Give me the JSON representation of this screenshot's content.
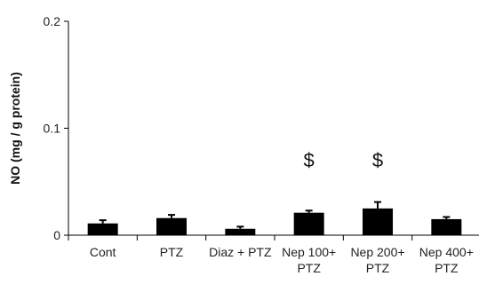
{
  "chart_data": {
    "type": "bar",
    "ylabel": "NO (mg / g protein)",
    "ylim": [
      0,
      0.2
    ],
    "yticks": [
      {
        "value": 0,
        "label": "0"
      },
      {
        "value": 0.1,
        "label": "0.1"
      },
      {
        "value": 0.2,
        "label": "0.2"
      }
    ],
    "categories": [
      [
        "Cont"
      ],
      [
        "PTZ"
      ],
      [
        "Diaz + PTZ"
      ],
      [
        "Nep 100+",
        "PTZ"
      ],
      [
        "Nep 200+",
        "PTZ"
      ],
      [
        "Nep 400+",
        "PTZ"
      ]
    ],
    "values": [
      0.011,
      0.016,
      0.006,
      0.021,
      0.025,
      0.015
    ],
    "errors": [
      0.003,
      0.003,
      0.002,
      0.002,
      0.006,
      0.002
    ],
    "annotations": [
      "",
      "",
      "",
      "$",
      "$",
      ""
    ],
    "bar_color": "#000000",
    "grid": false
  }
}
